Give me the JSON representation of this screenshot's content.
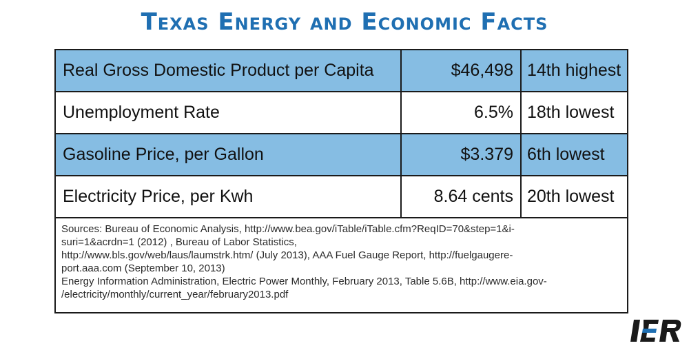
{
  "title": "Texas Energy and Economic Facts",
  "rows": [
    {
      "label": "Real Gross Domestic Product per Capita",
      "value": "$46,498",
      "rank": "14th highest"
    },
    {
      "label": "Unemployment Rate",
      "value": "6.5%",
      "rank": "18th lowest"
    },
    {
      "label": "Gasoline Price, per Gallon",
      "value": "$3.379",
      "rank": "6th lowest"
    },
    {
      "label": "Electricity Price, per Kwh",
      "value": "8.64 cents",
      "rank": "20th lowest"
    }
  ],
  "sources": [
    "Sources: Bureau of Economic Analysis, http://www.bea.gov/iTable/iTable.cfm?ReqID=70&step=1&i-",
    "suri=1&acrdn=1 (2012) , Bureau of Labor Statistics,",
    "http://www.bls.gov/web/laus/laumstrk.htm/ (July 2013), AAA Fuel Gauge Report, http://fuelgaugere-",
    "port.aaa.com  (September 10, 2013)",
    "Energy Information Administration, Electric Power Monthly, February 2013, Table 5.6B, http://www.eia.gov-",
    "/electricity/monthly/current_year/february2013.pdf"
  ],
  "logo": {
    "text": "IER",
    "color": "#1a1a1a",
    "accent": "#1f6fb2"
  },
  "colors": {
    "title": "#1f6fb2",
    "shade": "#86bde3"
  }
}
